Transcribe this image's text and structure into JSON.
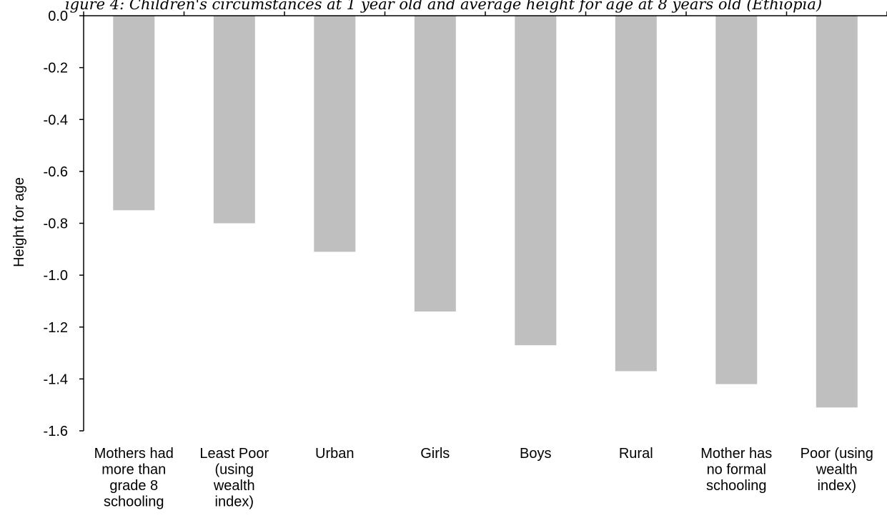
{
  "chart_data": {
    "type": "bar",
    "title": "igure 4: Children's circumstances at 1 year old and average height for age at 8 years old (Ethiopia)",
    "xlabel": "",
    "ylabel": "Height for age",
    "ylim": [
      -1.6,
      0.0
    ],
    "yticks": [
      "0.0",
      "-0.2",
      "-0.4",
      "-0.6",
      "-0.8",
      "-1.0",
      "-1.2",
      "-1.4",
      "-1.6"
    ],
    "grid": false,
    "bar_color": "#bfbfbf",
    "categories": [
      [
        "Mothers had",
        "more than",
        "grade 8",
        "schooling"
      ],
      [
        "Least Poor",
        "(using",
        "wealth",
        "index)"
      ],
      [
        "Urban"
      ],
      [
        "Girls"
      ],
      [
        "Boys"
      ],
      [
        "Rural"
      ],
      [
        "Mother has",
        "no formal",
        "schooling"
      ],
      [
        "Poor (using",
        "wealth",
        "index)"
      ]
    ],
    "values": [
      -0.75,
      -0.8,
      -0.91,
      -1.14,
      -1.27,
      -1.37,
      -1.42,
      -1.51
    ]
  }
}
